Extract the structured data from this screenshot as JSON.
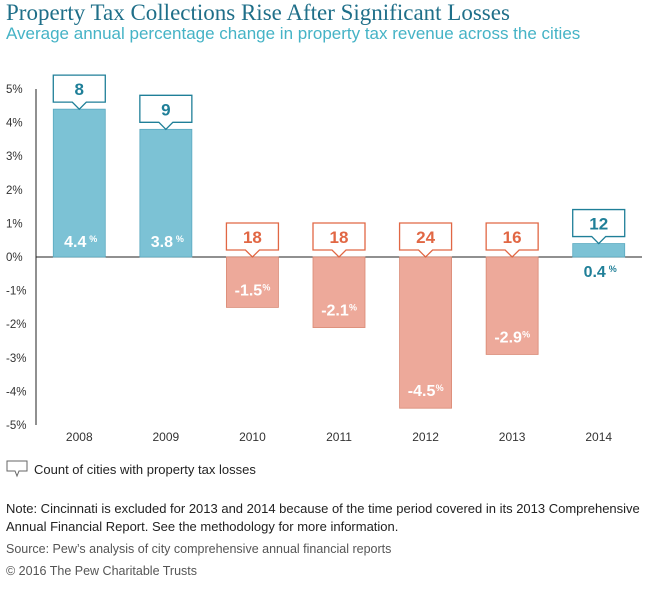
{
  "title": "Property Tax Collections Rise After Significant Losses",
  "subtitle": "Average annual percentage change in property tax revenue across the cities",
  "chart_data": {
    "type": "bar",
    "categories": [
      "2008",
      "2009",
      "2010",
      "2011",
      "2012",
      "2013",
      "2014"
    ],
    "values": [
      4.4,
      3.8,
      -1.5,
      -2.1,
      -4.5,
      -2.9,
      0.4
    ],
    "value_labels": [
      "4.4",
      "3.8",
      "-1.5",
      "-2.1",
      "-4.5",
      "-2.9",
      "0.4"
    ],
    "value_unit": "%",
    "loss_counts": [
      "8",
      "9",
      "18",
      "18",
      "24",
      "16",
      "12"
    ],
    "ylim": [
      -5,
      5
    ],
    "yticks": [
      "5%",
      "4%",
      "3%",
      "2%",
      "1%",
      "0%",
      "-1%",
      "-2%",
      "-3%",
      "-4%",
      "-5%"
    ],
    "grid": false,
    "colors": {
      "positive_bar": "#7cc2d5",
      "negative_bar": "#eda99a",
      "positive_callout": "#1f7f98",
      "negative_callout": "#e16744"
    }
  },
  "legend": {
    "label": "Count of cities with property tax losses",
    "icon": "callout-icon"
  },
  "note": "Note: Cincinnati is excluded for 2013 and 2014 because of the time period covered in its 2013 Comprehensive Annual Financial Report. See the methodology for more information.",
  "source": "Source: Pew’s analysis of city comprehensive annual financial reports",
  "copyright": "© 2016 The Pew Charitable Trusts"
}
